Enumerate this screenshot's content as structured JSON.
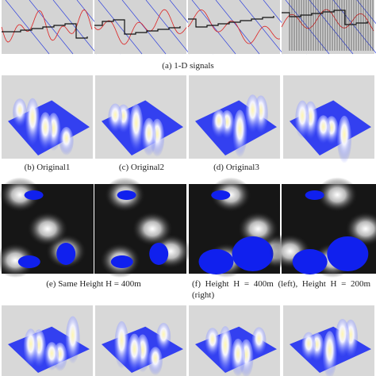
{
  "figure": {
    "panels": [
      {
        "label": "(a)",
        "caption": "1-D signals"
      },
      {
        "label": "(b)",
        "caption": "Original1"
      },
      {
        "label": "(c)",
        "caption": "Original2"
      },
      {
        "label": "(d)",
        "caption": "Original3"
      },
      {
        "label": "(e)",
        "caption": "Same Height H = 400m"
      },
      {
        "label": "(f)",
        "caption": "Height H = 400m (left), Height H = 200m (right)"
      }
    ]
  }
}
